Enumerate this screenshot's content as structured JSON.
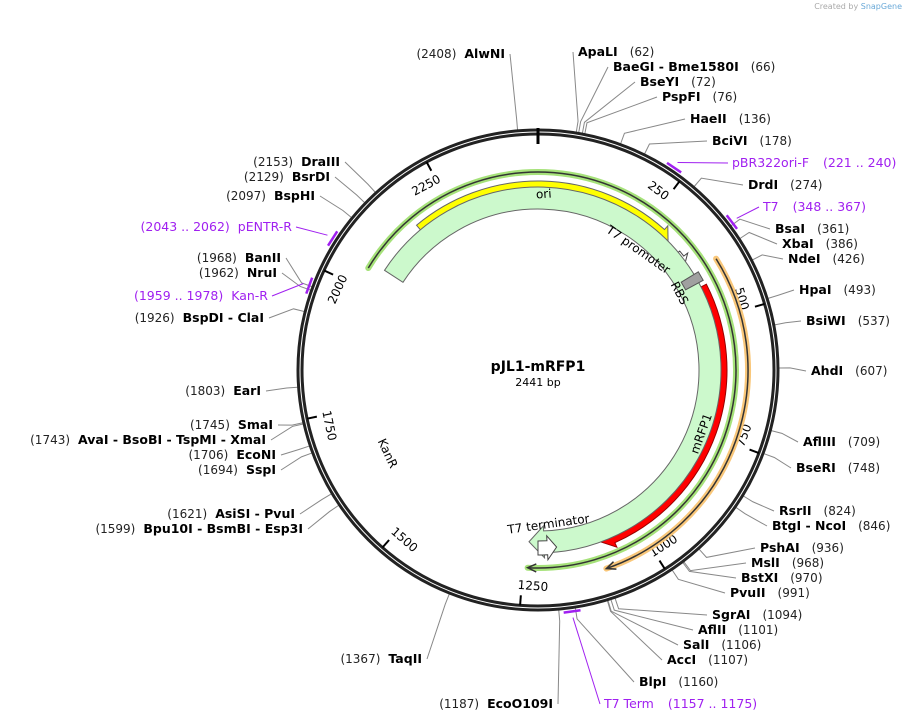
{
  "header": {
    "credit": "Created by",
    "brand": "SnapGene"
  },
  "plasmid": {
    "name": "pJL1-mRFP1",
    "length": "2441 bp",
    "total_bp": 2441
  },
  "ticks": [
    "250",
    "500",
    "750",
    "1000",
    "1250",
    "1500",
    "1750",
    "2000",
    "2250"
  ],
  "features": {
    "ori": "ori",
    "t7_promoter": "T7 promoter",
    "rbs": "RBS",
    "mrfp1": "mRFP1",
    "kanr": "KanR",
    "t7_terminator": "T7 terminator"
  },
  "colors": {
    "ori": "#ffff00",
    "mrfp1": "#ff0000",
    "kanr": "#ccf9cc",
    "rbs": "#a0a0a0",
    "primer": "#a020f0",
    "orf_mrfp1": "#f9c77a",
    "orf_kanr": "#a6e27a"
  },
  "sites": [
    {
      "name": "ApaLI",
      "pos": "(62)",
      "bp": 62
    },
    {
      "name": "BaeGI  - Bme1580I",
      "pos": "(66)",
      "bp": 66
    },
    {
      "name": "BseYI",
      "pos": "(72)",
      "bp": 72
    },
    {
      "name": "PspFI",
      "pos": "(76)",
      "bp": 76
    },
    {
      "name": "HaeII",
      "pos": "(136)",
      "bp": 136
    },
    {
      "name": "BciVI",
      "pos": "(178)",
      "bp": 178
    },
    {
      "name": "DrdI",
      "pos": "(274)",
      "bp": 274
    },
    {
      "name": "BsaI",
      "pos": "(361)",
      "bp": 361
    },
    {
      "name": "XbaI",
      "pos": "(386)",
      "bp": 386
    },
    {
      "name": "NdeI",
      "pos": "(426)",
      "bp": 426
    },
    {
      "name": "HpaI",
      "pos": "(493)",
      "bp": 493
    },
    {
      "name": "BsiWI",
      "pos": "(537)",
      "bp": 537
    },
    {
      "name": "AhdI",
      "pos": "(607)",
      "bp": 607
    },
    {
      "name": "AflIII",
      "pos": "(709)",
      "bp": 709
    },
    {
      "name": "BseRI",
      "pos": "(748)",
      "bp": 748
    },
    {
      "name": "RsrII",
      "pos": "(824)",
      "bp": 824
    },
    {
      "name": "BtgI  - NcoI",
      "pos": "(846)",
      "bp": 846
    },
    {
      "name": "PshAI",
      "pos": "(936)",
      "bp": 936
    },
    {
      "name": "MslI",
      "pos": "(968)",
      "bp": 968
    },
    {
      "name": "BstXI",
      "pos": "(970)",
      "bp": 970
    },
    {
      "name": "PvuII",
      "pos": "(991)",
      "bp": 991
    },
    {
      "name": "SgrAI",
      "pos": "(1094)",
      "bp": 1094
    },
    {
      "name": "AflII",
      "pos": "(1101)",
      "bp": 1101
    },
    {
      "name": "SalI",
      "pos": "(1106)",
      "bp": 1106
    },
    {
      "name": "AccI",
      "pos": "(1107)",
      "bp": 1107
    },
    {
      "name": "BlpI",
      "pos": "(1160)",
      "bp": 1160
    },
    {
      "name": "EcoO109I",
      "pos": "(1187)",
      "bp": 1187
    },
    {
      "name": "TaqII",
      "pos": "(1367)",
      "bp": 1367
    },
    {
      "name": "Bpu10I  - BsmBI  - Esp3I",
      "pos": "(1599)",
      "bp": 1599
    },
    {
      "name": "AsiSI  - PvuI",
      "pos": "(1621)",
      "bp": 1621
    },
    {
      "name": "SspI",
      "pos": "(1694)",
      "bp": 1694
    },
    {
      "name": "EcoNI",
      "pos": "(1706)",
      "bp": 1706
    },
    {
      "name": "AvaI  - BsoBI  - TspMI  - XmaI",
      "pos": "(1743)",
      "bp": 1743
    },
    {
      "name": "SmaI",
      "pos": "(1745)",
      "bp": 1745
    },
    {
      "name": "EarI",
      "pos": "(1803)",
      "bp": 1803
    },
    {
      "name": "BspDI  - ClaI",
      "pos": "(1926)",
      "bp": 1926
    },
    {
      "name": "NruI",
      "pos": "(1962)",
      "bp": 1962
    },
    {
      "name": "BanII",
      "pos": "(1968)",
      "bp": 1968
    },
    {
      "name": "BspHI",
      "pos": "(2097)",
      "bp": 2097
    },
    {
      "name": "BsrDI",
      "pos": "(2129)",
      "bp": 2129
    },
    {
      "name": "DraIII",
      "pos": "(2153)",
      "bp": 2153
    },
    {
      "name": "AlwNI",
      "pos": "(2408)",
      "bp": 2408
    }
  ],
  "primers": [
    {
      "name": "pBR322ori-F",
      "range": "(221 .. 240)",
      "bp": 230
    },
    {
      "name": "T7",
      "range": "(348 .. 367)",
      "bp": 357
    },
    {
      "name": "T7 Term",
      "range": "(1157 .. 1175)",
      "bp": 1166
    },
    {
      "name": "Kan-R",
      "range": "(1959 .. 1978)",
      "bp": 1968
    },
    {
      "name": "pENTR-R",
      "range": "(2043 .. 2062)",
      "bp": 2052
    }
  ]
}
